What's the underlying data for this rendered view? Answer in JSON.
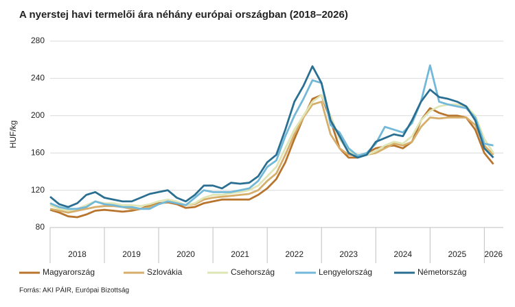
{
  "chart_data": {
    "type": "line",
    "title": "A nyerstej havi termelői ára néhány európai országban (2018–2026)",
    "y_label": "HUF/kg",
    "source": "Forrás: AKI PÁIR, Európai Bizottság",
    "x": [
      2018,
      2018.167,
      2018.333,
      2018.5,
      2018.667,
      2018.833,
      2019,
      2019.167,
      2019.333,
      2019.5,
      2019.667,
      2019.833,
      2020,
      2020.167,
      2020.333,
      2020.5,
      2020.667,
      2020.833,
      2021,
      2021.167,
      2021.333,
      2021.5,
      2021.667,
      2021.833,
      2022,
      2022.167,
      2022.333,
      2022.5,
      2022.667,
      2022.833,
      2023,
      2023.167,
      2023.333,
      2023.5,
      2023.667,
      2023.833,
      2024,
      2024.167,
      2024.333,
      2024.5,
      2024.667,
      2024.833,
      2025,
      2025.167,
      2025.333,
      2025.5,
      2025.667,
      2025.833,
      2026,
      2026.167
    ],
    "xlim": [
      2018,
      2026.35
    ],
    "xticks": [
      {
        "value": 2018.5,
        "label": "2018"
      },
      {
        "value": 2019.5,
        "label": "2019"
      },
      {
        "value": 2020.5,
        "label": "2020"
      },
      {
        "value": 2021.5,
        "label": "2021"
      },
      {
        "value": 2022.5,
        "label": "2022"
      },
      {
        "value": 2023.5,
        "label": "2023"
      },
      {
        "value": 2024.5,
        "label": "2024"
      },
      {
        "value": 2025.5,
        "label": "2025"
      },
      {
        "value": 2026.17,
        "label": "2026"
      }
    ],
    "ylim": [
      80,
      280
    ],
    "yticks": [
      80,
      120,
      160,
      200,
      240,
      280
    ],
    "grid": true,
    "series": [
      {
        "name": "Magyarország",
        "color": "#b8742c",
        "values": [
          99,
          96,
          92,
          91,
          94,
          98,
          99,
          98,
          97,
          98,
          100,
          104,
          106,
          107,
          105,
          101,
          102,
          106,
          108,
          110,
          110,
          110,
          110,
          115,
          122,
          132,
          150,
          175,
          198,
          218,
          222,
          195,
          165,
          155,
          155,
          160,
          165,
          167,
          168,
          165,
          172,
          195,
          208,
          203,
          200,
          200,
          198,
          185,
          160,
          148
        ]
      },
      {
        "name": "Szlovákia",
        "color": "#d6ae6a",
        "values": [
          100,
          98,
          96,
          98,
          100,
          102,
          103,
          103,
          102,
          100,
          100,
          102,
          105,
          108,
          107,
          104,
          105,
          110,
          112,
          113,
          114,
          115,
          116,
          120,
          130,
          138,
          158,
          180,
          198,
          212,
          215,
          180,
          165,
          158,
          157,
          158,
          160,
          165,
          170,
          168,
          172,
          188,
          198,
          197,
          198,
          198,
          198,
          190,
          168,
          158
        ]
      },
      {
        "name": "Csehország",
        "color": "#dfe5b4",
        "values": [
          104,
          100,
          98,
          100,
          104,
          108,
          106,
          106,
          104,
          104,
          103,
          105,
          108,
          110,
          108,
          104,
          106,
          112,
          115,
          115,
          117,
          118,
          120,
          125,
          135,
          145,
          165,
          185,
          200,
          215,
          222,
          200,
          175,
          162,
          158,
          158,
          162,
          168,
          172,
          170,
          178,
          195,
          205,
          210,
          212,
          212,
          210,
          200,
          175,
          160
        ]
      },
      {
        "name": "Lengyelország",
        "color": "#72b8d8",
        "values": [
          106,
          102,
          100,
          100,
          102,
          108,
          105,
          104,
          102,
          102,
          100,
          100,
          105,
          108,
          106,
          104,
          112,
          120,
          118,
          118,
          118,
          120,
          122,
          130,
          145,
          152,
          178,
          200,
          218,
          238,
          235,
          190,
          182,
          165,
          157,
          160,
          170,
          188,
          185,
          182,
          192,
          215,
          254,
          215,
          212,
          210,
          208,
          198,
          170,
          168
        ]
      },
      {
        "name": "Németország",
        "color": "#2a6f91",
        "values": [
          113,
          105,
          102,
          106,
          115,
          118,
          112,
          110,
          108,
          108,
          112,
          116,
          118,
          120,
          112,
          108,
          115,
          125,
          125,
          122,
          128,
          127,
          128,
          135,
          150,
          158,
          185,
          215,
          232,
          253,
          235,
          195,
          178,
          160,
          155,
          158,
          172,
          176,
          180,
          178,
          195,
          215,
          228,
          220,
          218,
          215,
          210,
          195,
          165,
          155
        ]
      }
    ]
  }
}
